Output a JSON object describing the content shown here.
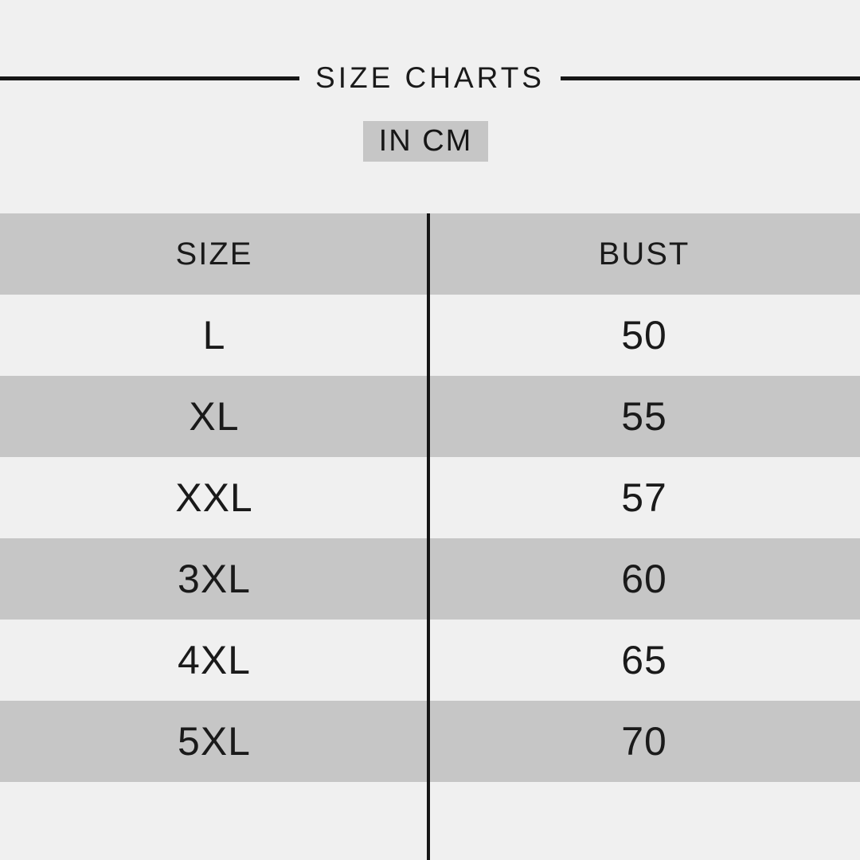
{
  "header": {
    "title": "SIZE CHARTS",
    "unit_badge": "IN CM"
  },
  "chart_data": {
    "type": "table",
    "title": "SIZE CHARTS",
    "subtitle": "IN CM",
    "unit": "cm",
    "columns": [
      "SIZE",
      "BUST"
    ],
    "rows": [
      [
        "L",
        "50"
      ],
      [
        "XL",
        "55"
      ],
      [
        "XXL",
        "57"
      ],
      [
        "3XL",
        "60"
      ],
      [
        "4XL",
        "65"
      ],
      [
        "5XL",
        "70"
      ]
    ]
  },
  "colors": {
    "background": "#f0f0f0",
    "band_gray": "#c6c6c6",
    "ink": "#161616"
  }
}
